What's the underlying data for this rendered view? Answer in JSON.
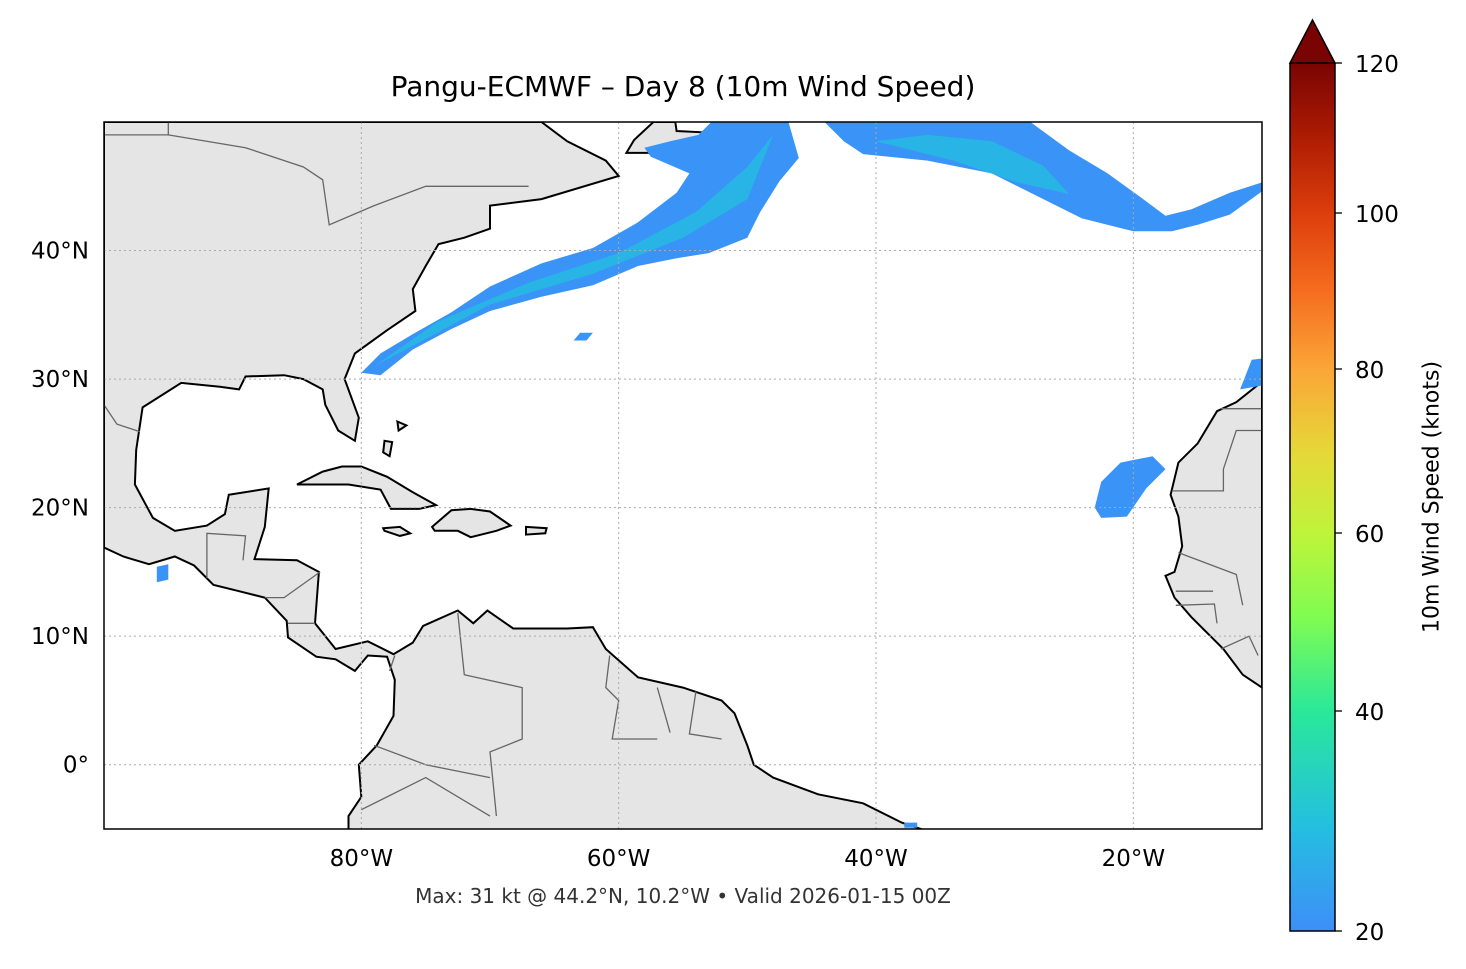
{
  "title": "Pangu-ECMWF – Day 8 (10m Wind Speed)",
  "caption": "Max: 31 kt @ 44.2°N, 10.2°W • Valid 2026-01-15 00Z",
  "chart_data": {
    "type": "map",
    "extent": {
      "lon": [
        -100,
        -10
      ],
      "lat": [
        -5,
        50
      ]
    },
    "grid": true,
    "x_ticks": [
      {
        "value": -80,
        "label": "80°W"
      },
      {
        "value": -60,
        "label": "60°W"
      },
      {
        "value": -40,
        "label": "40°W"
      },
      {
        "value": -20,
        "label": "20°W"
      }
    ],
    "y_ticks": [
      {
        "value": 40,
        "label": "40°N"
      },
      {
        "value": 30,
        "label": "30°N"
      },
      {
        "value": 20,
        "label": "20°N"
      },
      {
        "value": 10,
        "label": "10°N"
      },
      {
        "value": 0,
        "label": "0°"
      }
    ],
    "colorbar": {
      "label": "10m Wind Speed (knots)",
      "range": [
        20,
        120
      ],
      "extend": "max",
      "ticks": [
        "20",
        "40",
        "60",
        "80",
        "100",
        "120"
      ],
      "colormap": "turbo"
    },
    "max_wind": {
      "value_kt": 31,
      "lat": 44.2,
      "lon": -10.2
    },
    "valid_time": "2026-01-15 00Z"
  },
  "colors": {
    "land": "#e5e5e5",
    "coast": "#000000",
    "border": "#666666",
    "wind_low": "#3a94f7",
    "wind_core": "#1ccbd8"
  }
}
